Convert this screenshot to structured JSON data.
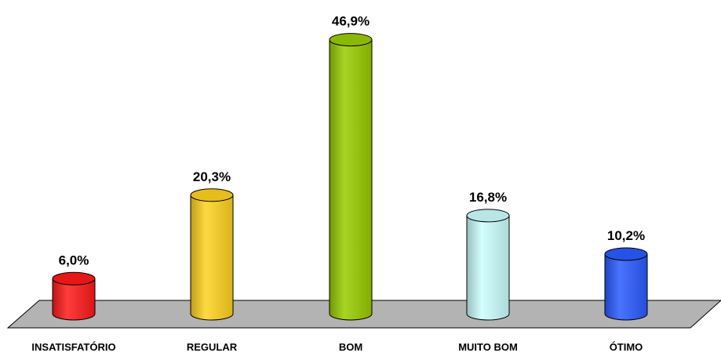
{
  "chart_data": {
    "type": "bar",
    "style": "3d-cylinder",
    "title": "",
    "xlabel": "",
    "ylabel": "",
    "ylim": [
      0,
      50
    ],
    "grid": false,
    "legend": "none",
    "categories": [
      "INSATISFATÓRIO",
      "REGULAR",
      "BOM",
      "MUITO BOM",
      "ÓTIMO"
    ],
    "values": [
      6.0,
      20.3,
      46.9,
      16.8,
      10.2
    ],
    "value_labels": [
      "6,0%",
      "20,3%",
      "46,9%",
      "16,8%",
      "10,2%"
    ],
    "colors": [
      "#ff1a1a",
      "#ffd21f",
      "#99cc00",
      "#ccffff",
      "#2a5cff"
    ]
  }
}
